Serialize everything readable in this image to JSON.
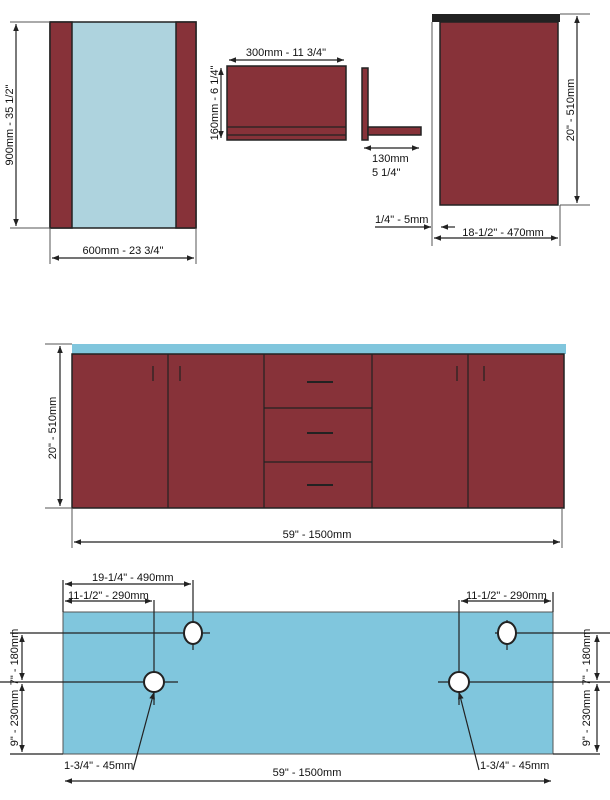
{
  "colors": {
    "panel": "#873239",
    "glass": "#aed3de",
    "counter": "#80c6dd",
    "outline": "#222222"
  },
  "side_panel": {
    "height_label": "900mm - 35 1/2\"",
    "width_label": "600mm - 23 3/4\""
  },
  "drawer_side": {
    "width_label": "300mm - 11 3/4\"",
    "height_label": "160mm - 6 1/4\""
  },
  "drawer_profile": {
    "depth_label_mm": "130mm",
    "depth_label_in": "5 1/4\""
  },
  "cabinet_side": {
    "height_label": "20\" - 510mm",
    "offset_label": "1/4\" - 5mm",
    "depth_label": "18-1/2\" - 470mm"
  },
  "front_view": {
    "height_label": "20\" - 510mm",
    "width_label": "59\" - 1500mm"
  },
  "top_view": {
    "dim_490": "19-1/4\" - 490mm",
    "dim_290_left": "11-1/2\" - 290mm",
    "dim_290_right": "11-1/2\" - 290mm",
    "dim_180_left": "7\" - 180mm",
    "dim_230_left": "9\" - 230mm",
    "dim_180_right": "7\" - 180mm",
    "dim_230_right": "9\" - 230mm",
    "hole_left": "1-3/4\" - 45mm",
    "hole_right": "1-3/4\" - 45mm",
    "width_label": "59\" - 1500mm"
  }
}
